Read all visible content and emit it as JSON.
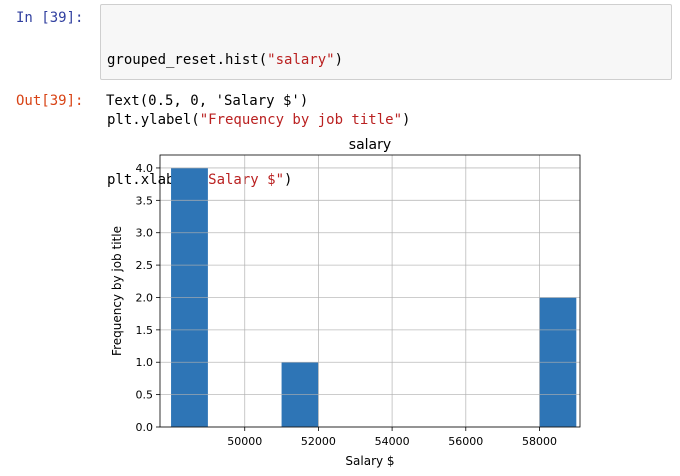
{
  "input_cell": {
    "prompt": "In [39]:",
    "code_lines": [
      {
        "pre": "grouped_reset.hist(",
        "str": "\"salary\"",
        "post": ")"
      },
      {
        "pre": "plt.ylabel(",
        "str": "\"Frequency by job title\"",
        "post": ")"
      },
      {
        "pre": "plt.xlabel(",
        "str": "\"Salary $\"",
        "post": ")"
      }
    ]
  },
  "output_cell": {
    "prompt": "Out[39]:",
    "text": "Text(0.5, 0, 'Salary $')"
  },
  "colors": {
    "bar": "#2e75b6",
    "in_prompt": "#303f9f",
    "out_prompt": "#d84315",
    "string": "#ba2121"
  },
  "chart_data": {
    "type": "bar",
    "title": "salary",
    "xlabel": "Salary $",
    "ylabel": "Frequency by job title",
    "xlim": [
      47700,
      59100
    ],
    "ylim": [
      0,
      4.2
    ],
    "xticks": [
      50000,
      52000,
      54000,
      56000,
      58000
    ],
    "yticks": [
      0.0,
      0.5,
      1.0,
      1.5,
      2.0,
      2.5,
      3.0,
      3.5,
      4.0
    ],
    "xtick_labels": [
      "50000",
      "52000",
      "54000",
      "56000",
      "58000"
    ],
    "ytick_labels": [
      "0.0",
      "0.5",
      "1.0",
      "1.5",
      "2.0",
      "2.5",
      "3.0",
      "3.5",
      "4.0"
    ],
    "grid": true,
    "bins": [
      {
        "x0": 48000,
        "x1": 49000,
        "count": 4
      },
      {
        "x0": 51000,
        "x1": 52000,
        "count": 1
      },
      {
        "x0": 58000,
        "x1": 59000,
        "count": 2
      }
    ]
  }
}
